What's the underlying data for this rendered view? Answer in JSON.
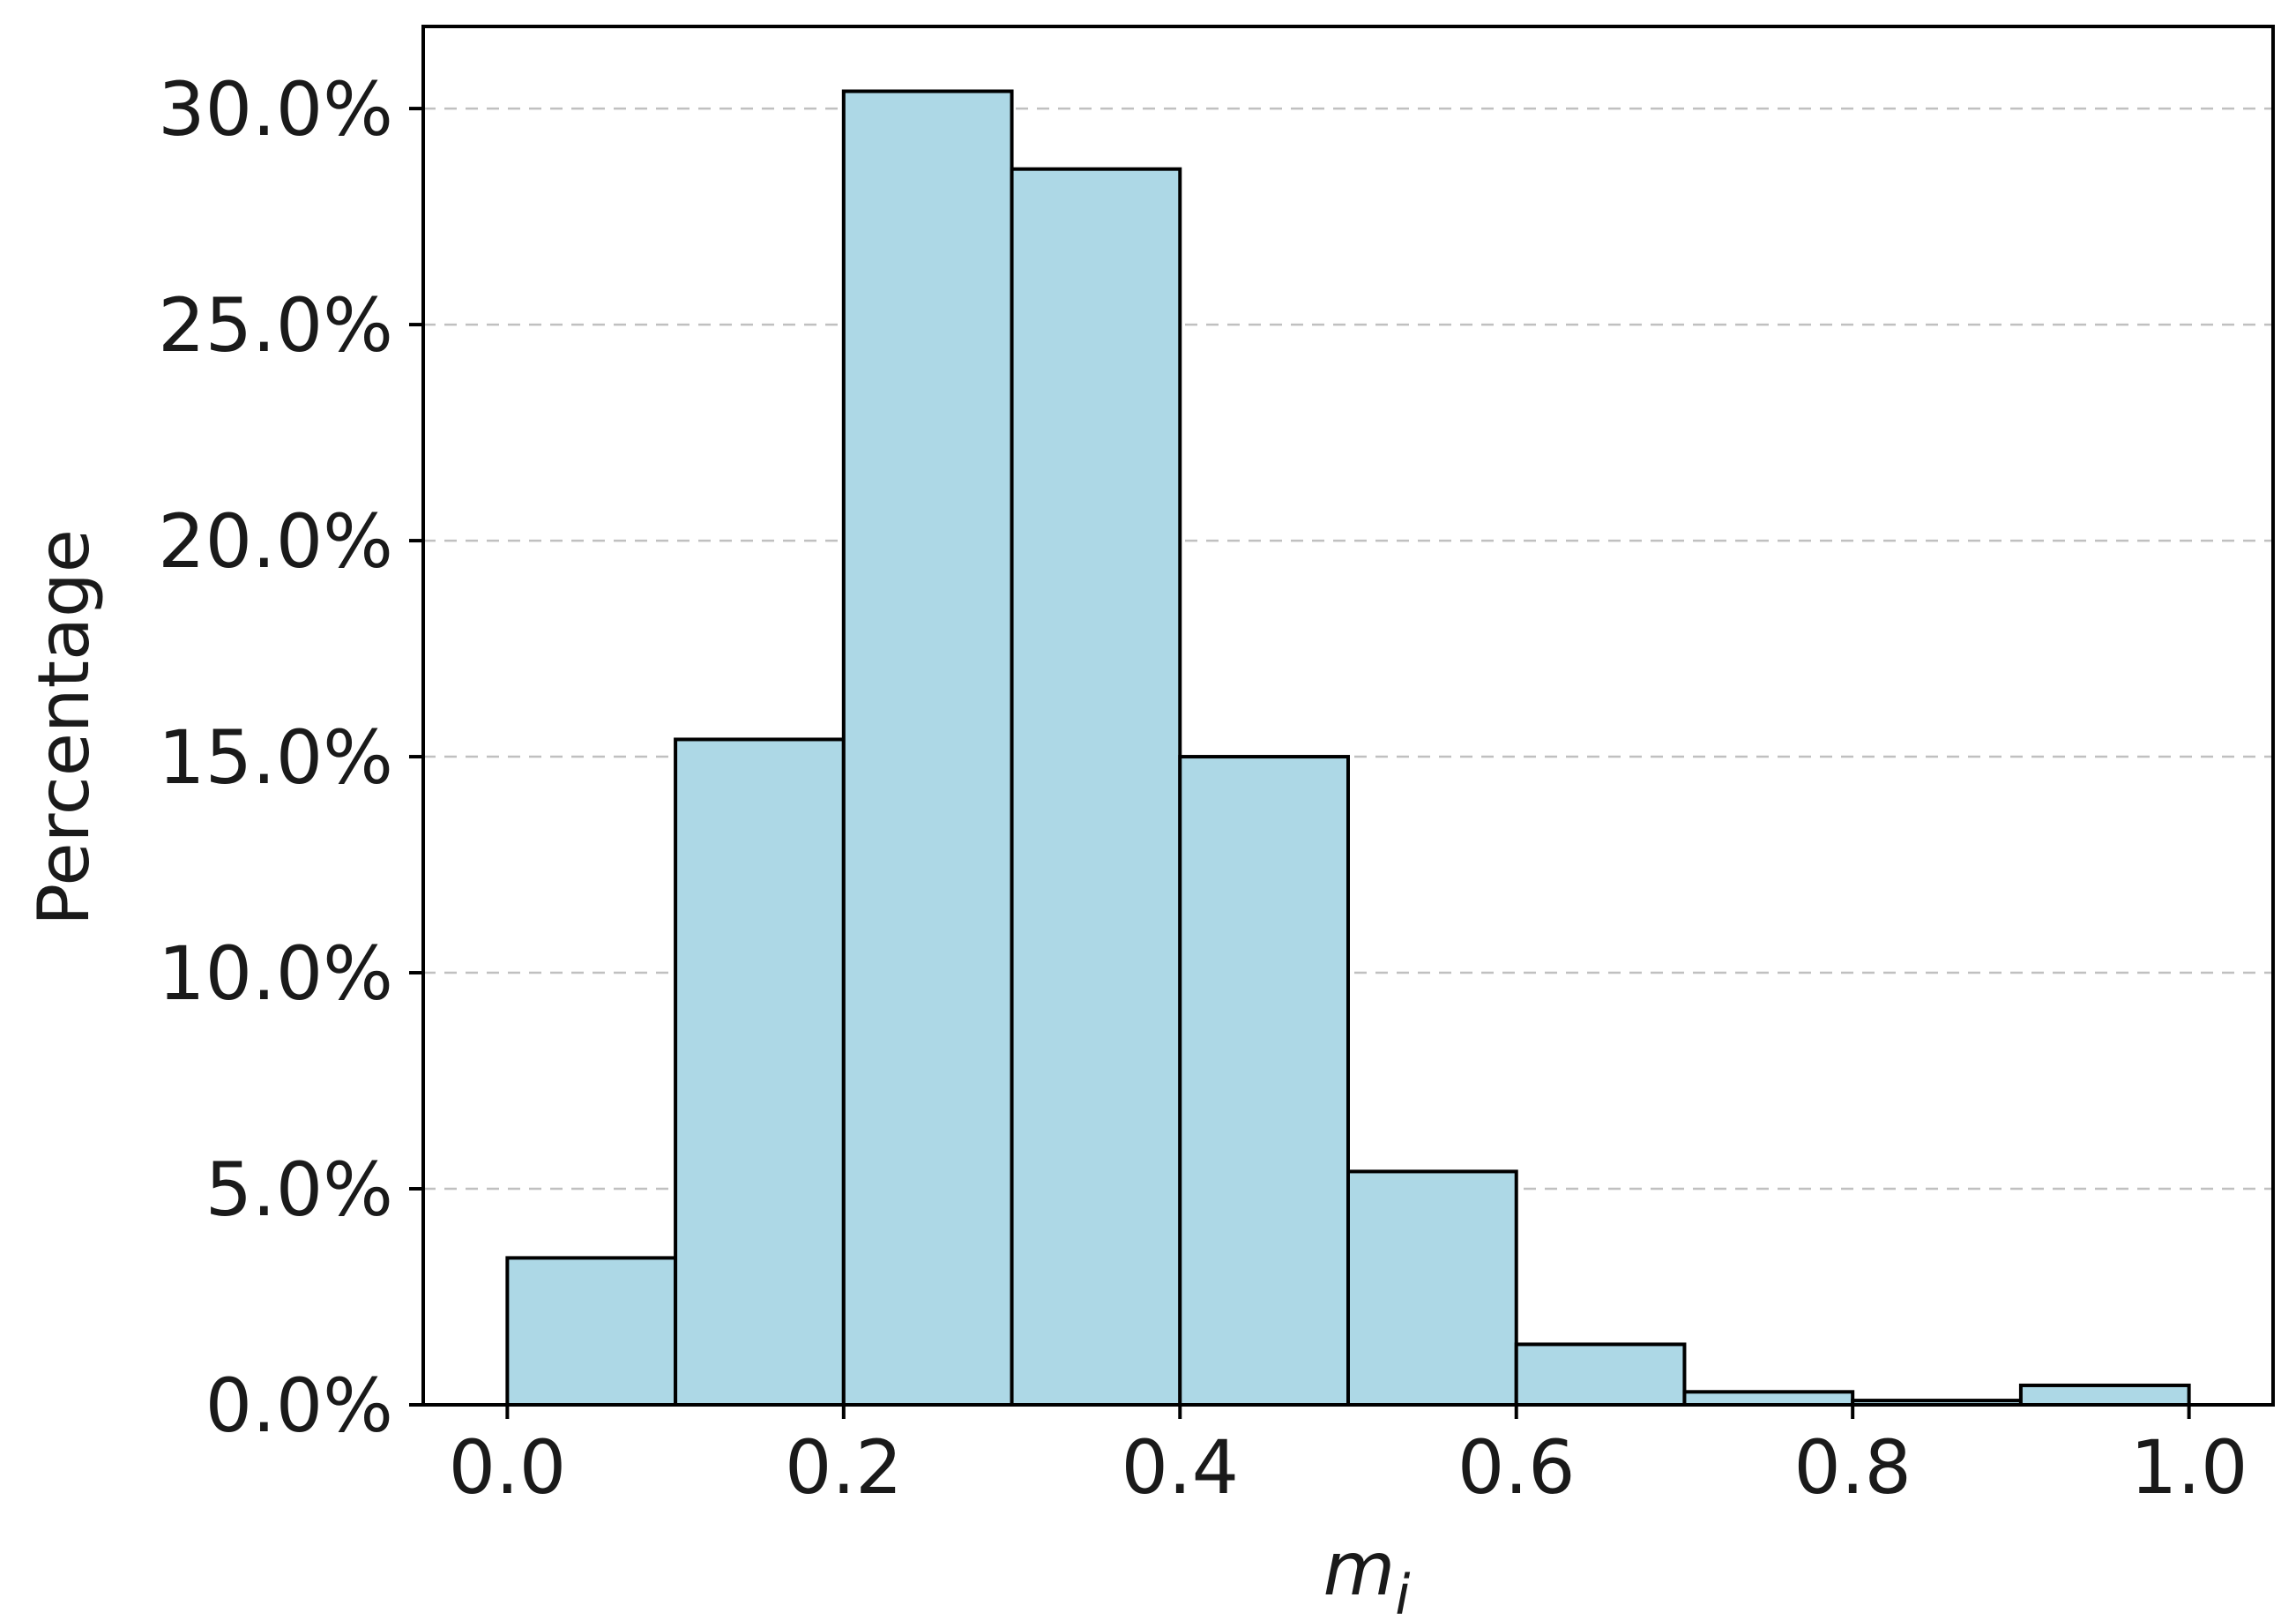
{
  "chart_data": {
    "type": "bar",
    "title": "",
    "xlabel": "m",
    "xlabel_subscript": "i",
    "ylabel": "Percentage",
    "bins": [
      {
        "x0": 0.0,
        "x1": 0.1,
        "value": 3.4
      },
      {
        "x0": 0.1,
        "x1": 0.2,
        "value": 15.4
      },
      {
        "x0": 0.2,
        "x1": 0.3,
        "value": 30.4
      },
      {
        "x0": 0.3,
        "x1": 0.4,
        "value": 28.6
      },
      {
        "x0": 0.4,
        "x1": 0.5,
        "value": 15.0
      },
      {
        "x0": 0.5,
        "x1": 0.6,
        "value": 5.4
      },
      {
        "x0": 0.6,
        "x1": 0.7,
        "value": 1.4
      },
      {
        "x0": 0.7,
        "x1": 0.8,
        "value": 0.3
      },
      {
        "x0": 0.8,
        "x1": 0.9,
        "value": 0.1
      },
      {
        "x0": 0.9,
        "x1": 1.0,
        "value": 0.45
      }
    ],
    "xticks": [
      0.0,
      0.2,
      0.4,
      0.6,
      0.8,
      1.0
    ],
    "xtick_labels": [
      "0.0",
      "0.2",
      "0.4",
      "0.6",
      "0.8",
      "1.0"
    ],
    "yticks": [
      0,
      5,
      10,
      15,
      20,
      25,
      30
    ],
    "ytick_labels": [
      "0.0%",
      "5.0%",
      "10.0%",
      "15.0%",
      "20.0%",
      "25.0%",
      "30.0%"
    ],
    "xlim": [
      -0.05,
      1.05
    ],
    "ylim": [
      0,
      31.9
    ],
    "grid": "y-dashed",
    "colors": {
      "bar_fill": "#add8e6",
      "bar_edge": "#000000",
      "grid": "#c0c0c0",
      "axes": "#000000"
    }
  }
}
